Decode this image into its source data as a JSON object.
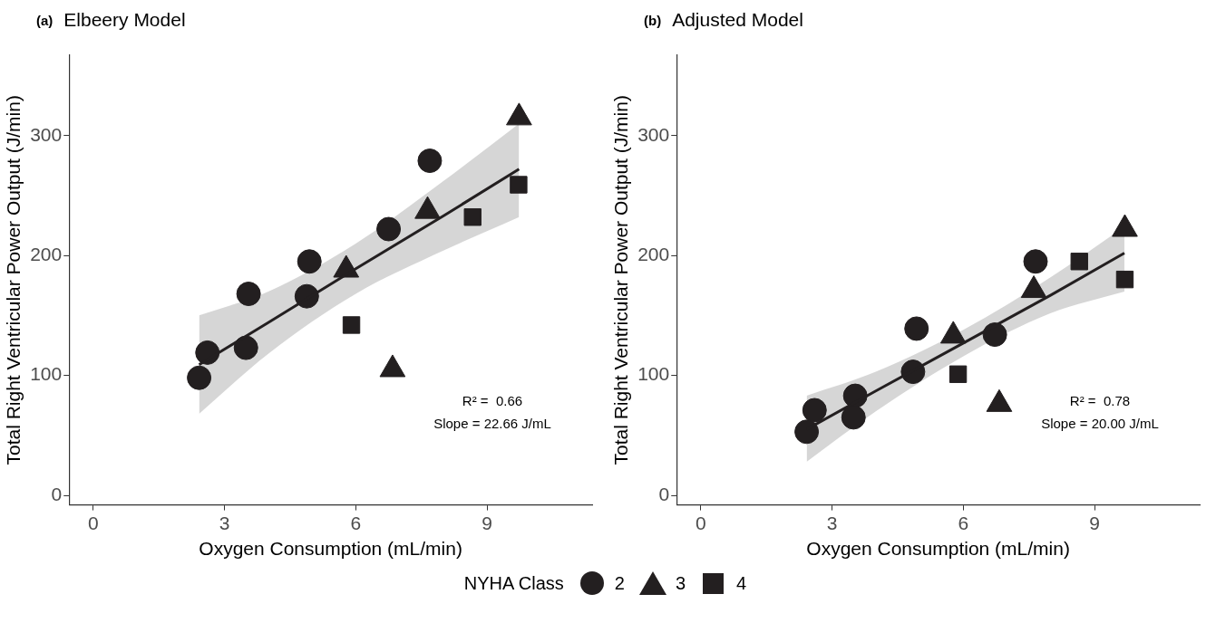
{
  "chart_data": [
    {
      "type": "scatter",
      "title": "(a)",
      "subtitle": "Elbeery Model",
      "xlabel": "Oxygen Consumption (mL/min)",
      "ylabel": "Total Right Ventricular Power Output (J/min)",
      "legend_title": "NYHA Class",
      "legend": "bottom",
      "grid": false,
      "xlim": [
        -0.55,
        11.4
      ],
      "ylim": [
        -8,
        367
      ],
      "xticks": [
        0,
        3,
        6,
        9
      ],
      "yticks": [
        0,
        100,
        200,
        300
      ],
      "annotations": [
        "R² =  0.66",
        "Slope = 22.66 J/mL"
      ],
      "series": [
        {
          "name": "2",
          "color": "#231f20",
          "marker": "circle",
          "x": [
            2.42,
            2.61,
            3.55,
            3.49,
            4.94,
            4.88,
            6.75,
            7.69
          ],
          "values": [
            98,
            119,
            168,
            123,
            195,
            166,
            222,
            279
          ]
        },
        {
          "name": "3",
          "color": "#231f20",
          "marker": "triangle",
          "x": [
            5.78,
            6.84,
            7.64,
            9.73
          ],
          "values": [
            188,
            105,
            237,
            315
          ]
        },
        {
          "name": "4",
          "color": "#231f20",
          "marker": "square",
          "x": [
            5.9,
            8.67,
            9.72
          ],
          "values": [
            142,
            232,
            259
          ]
        },
        {
          "type": "line",
          "color": "#231f20",
          "x": [
            2.42,
            4,
            6,
            8,
            9.73
          ],
          "values": [
            109,
            144,
            189,
            233,
            272
          ],
          "lower": [
            68,
            118,
            168,
            204,
            232
          ],
          "upper": [
            150,
            170,
            210,
            262,
            310
          ]
        }
      ]
    },
    {
      "type": "scatter",
      "title": "(b)",
      "subtitle": "Adjusted Model",
      "xlabel": "Oxygen Consumption (mL/min)",
      "ylabel": "Total Right Ventricular Power Output (J/min)",
      "grid": false,
      "xlim": [
        -0.55,
        11.4
      ],
      "ylim": [
        -8,
        367
      ],
      "xticks": [
        0,
        3,
        6,
        9
      ],
      "yticks": [
        0,
        100,
        200,
        300
      ],
      "annotations": [
        "R² =  0.78",
        "Slope = 20.00 J/mL"
      ],
      "series": [
        {
          "color": "#231f20",
          "marker": "circle",
          "x": [
            2.42,
            2.6,
            3.53,
            3.49,
            4.85,
            4.93,
            6.72,
            7.65
          ],
          "values": [
            53,
            71,
            83,
            65,
            103,
            139,
            134,
            195
          ]
        },
        {
          "color": "#231f20",
          "marker": "triangle",
          "x": [
            5.77,
            6.82,
            7.61,
            9.69
          ],
          "values": [
            133,
            76,
            171,
            222
          ]
        },
        {
          "color": "#231f20",
          "marker": "square",
          "x": [
            5.88,
            8.65,
            9.69
          ],
          "values": [
            101,
            195,
            180
          ]
        },
        {
          "type": "line",
          "color": "#231f20",
          "x": [
            2.42,
            4,
            6,
            8,
            9.68
          ],
          "values": [
            55,
            87,
            127,
            167,
            202
          ],
          "lower": [
            28,
            70,
            116,
            152,
            170
          ],
          "upper": [
            83,
            103,
            138,
            182,
            224
          ]
        }
      ]
    }
  ]
}
